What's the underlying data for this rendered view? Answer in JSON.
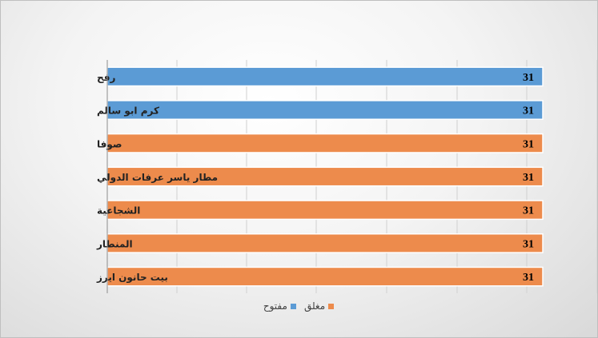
{
  "chart_data": {
    "type": "bar",
    "orientation": "horizontal",
    "categories": [
      "رفح",
      "كرم ابو سالم",
      "صوفا",
      "مطار ياسر عرفات الدولي",
      "الشجاعية",
      "المنطار",
      "بيت حانون ايرز"
    ],
    "values": [
      31,
      31,
      31,
      31,
      31,
      31,
      31
    ],
    "status": [
      "مفتوح",
      "مفتوح",
      "مغلق",
      "مغلق",
      "مغلق",
      "مغلق",
      "مغلق"
    ],
    "data_labels": [
      "31",
      "31",
      "31",
      "31",
      "31",
      "31",
      "31"
    ],
    "xlim": [
      0,
      31
    ],
    "grid": true,
    "legend_position": "bottom",
    "legend": [
      {
        "name": "مغلق",
        "color": "#ed8b4c"
      },
      {
        "name": "مفتوح",
        "color": "#5b9bd5"
      }
    ],
    "colors": {
      "open": "#5b9bd5",
      "closed": "#ed8b4c"
    }
  }
}
